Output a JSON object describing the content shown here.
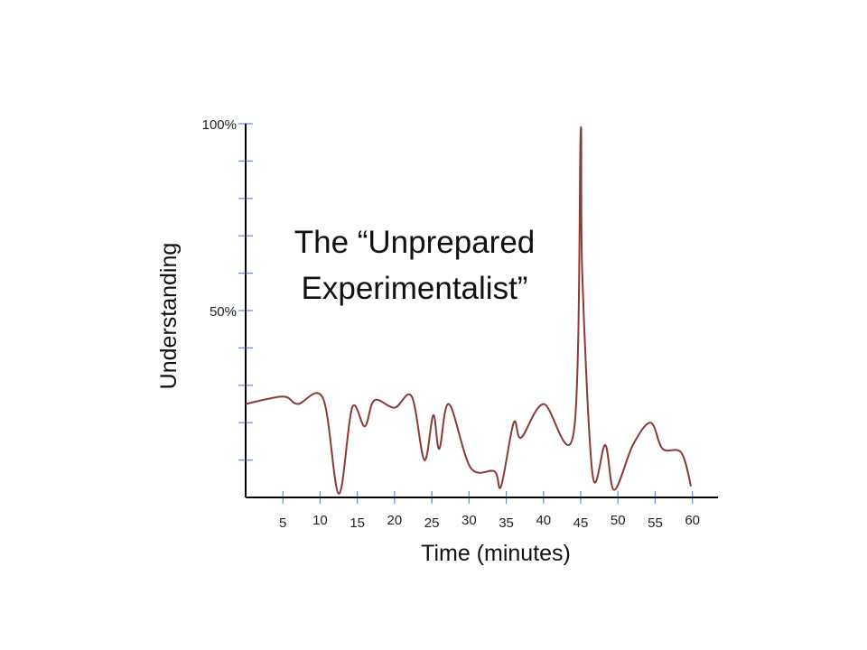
{
  "chart_data": {
    "type": "line",
    "title_lines": [
      "The “Unprepared",
      "Experimentalist”"
    ],
    "xlabel": "Time (minutes)",
    "ylabel": "Understanding",
    "xlim": [
      0,
      65
    ],
    "ylim": [
      0,
      100
    ],
    "x_ticks": [
      5,
      10,
      15,
      20,
      25,
      30,
      35,
      40,
      45,
      50,
      55,
      60
    ],
    "y_tick_labels": [
      {
        "value": 50,
        "label": "50%"
      },
      {
        "value": 100,
        "label": "100%"
      }
    ],
    "y_minor_ticks": [
      10,
      20,
      30,
      40,
      50,
      60,
      70,
      80,
      90,
      100
    ],
    "grid": false,
    "legend": "none",
    "line_color": "#8b3a3a",
    "tick_color": "#5b8ed6",
    "series": [
      {
        "x": [
          0,
          5,
          7,
          10.4,
          12.5,
          14.3,
          16,
          17.3,
          20,
          22.3,
          24,
          25.2,
          26,
          27.3,
          30.2,
          33.4,
          34.3,
          36,
          37,
          40,
          44.1,
          45,
          45.2,
          46.6,
          48.3,
          49.5,
          52,
          54.4,
          56,
          58.5,
          59.8
        ],
        "y": [
          25,
          27,
          25,
          26.5,
          1,
          24,
          19,
          26,
          24,
          27,
          10,
          22,
          13,
          25,
          8,
          7,
          3,
          20,
          16,
          25,
          18,
          98,
          60,
          6,
          14,
          2,
          14,
          20,
          13,
          12,
          3
        ]
      }
    ]
  }
}
